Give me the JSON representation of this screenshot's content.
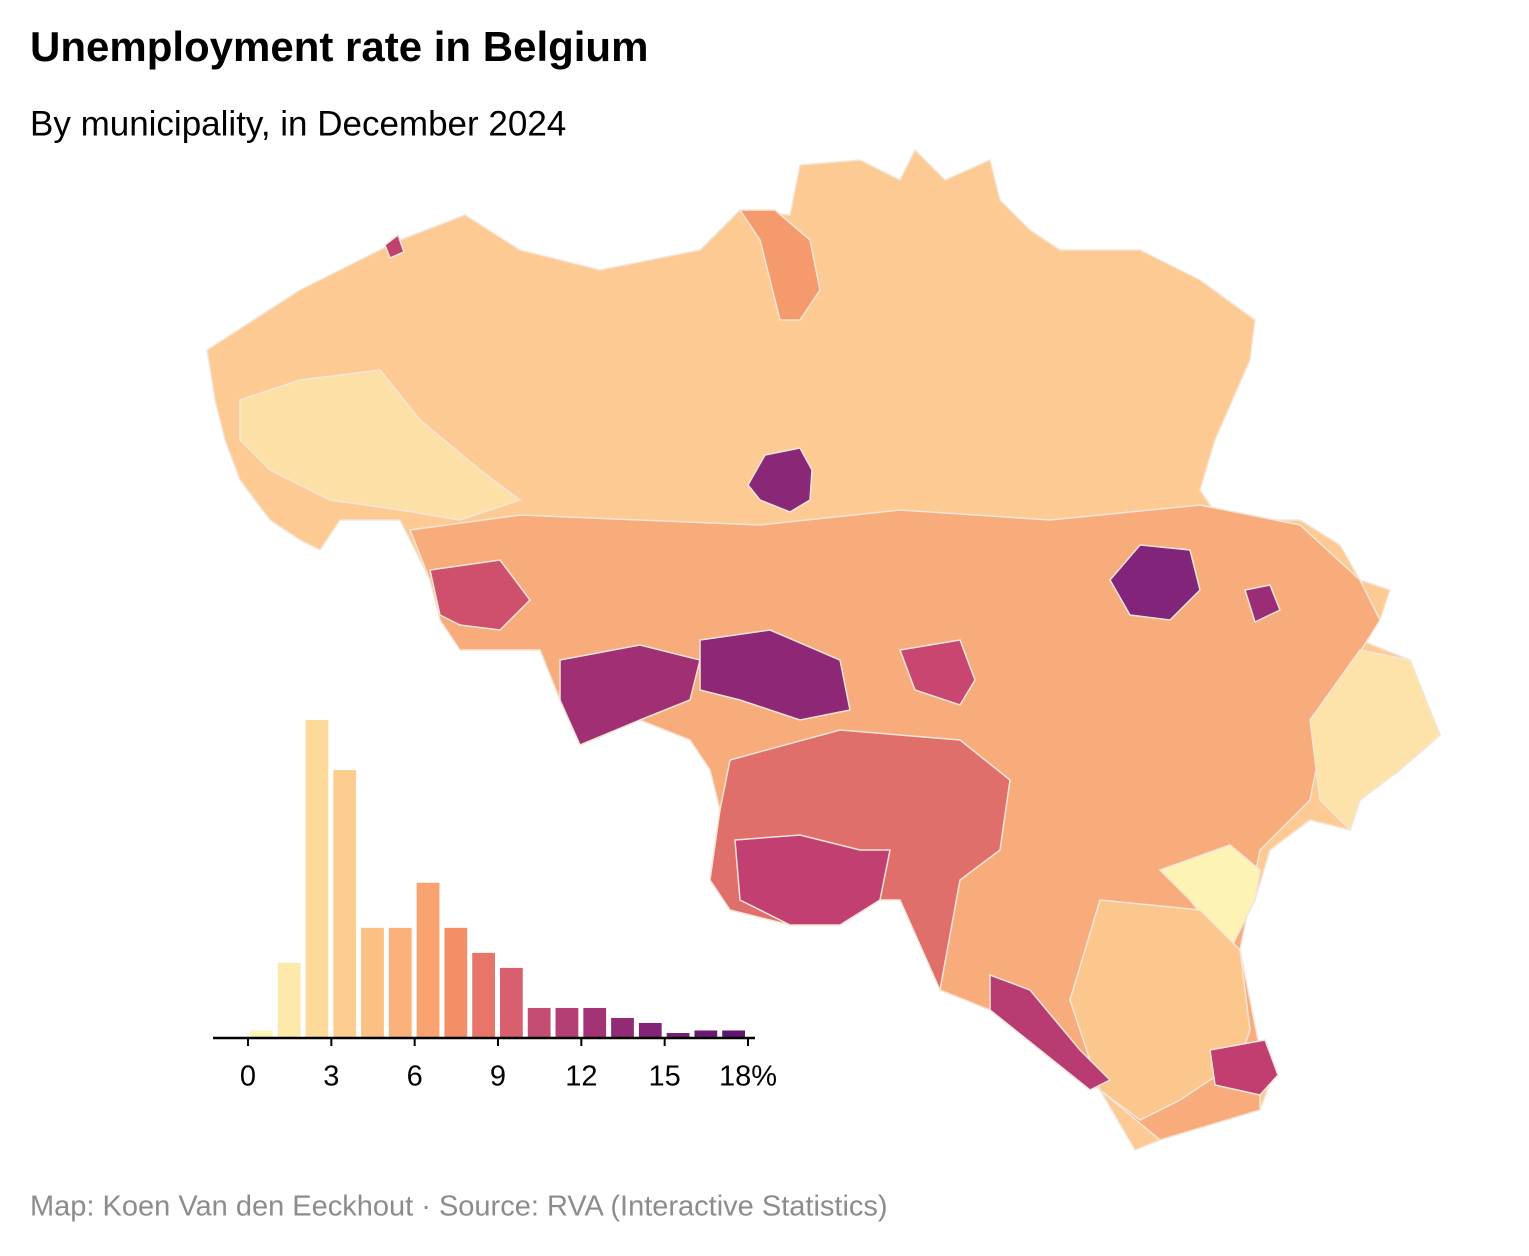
{
  "title": "Unemployment rate in Belgium",
  "subtitle": "By municipality, in December 2024",
  "source": "Map: Koen Van den Eeckhout · Source: RVA (Interactive Statistics)",
  "chart_data": {
    "type": "histogram",
    "bins": [
      0,
      1,
      2,
      3,
      4,
      5,
      6,
      7,
      8,
      9,
      10,
      11,
      12,
      13,
      14,
      15,
      16,
      17,
      18
    ],
    "counts": [
      3,
      30,
      127,
      107,
      44,
      44,
      62,
      44,
      34,
      28,
      12,
      12,
      12,
      8,
      6,
      2,
      3,
      3
    ],
    "colors": [
      "#fcf6b8",
      "#fde9a9",
      "#fdd99a",
      "#fdcd8f",
      "#fcbf84",
      "#fbb27a",
      "#f9a470",
      "#f38e67",
      "#e8756a",
      "#d8606e",
      "#c44d72",
      "#b43f74",
      "#a23475",
      "#912b75",
      "#832476",
      "#751f76",
      "#6a1a74",
      "#5e1670"
    ],
    "xlim": [
      0,
      18
    ],
    "xticks": [
      0,
      3,
      6,
      9,
      12,
      15,
      {
        "value": 18,
        "label": "18%"
      }
    ]
  }
}
